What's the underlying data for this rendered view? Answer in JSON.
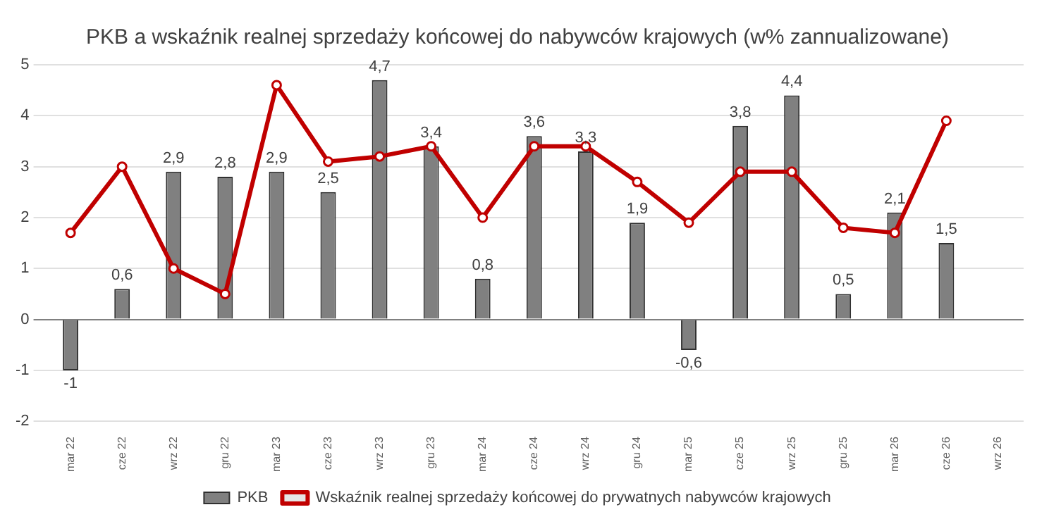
{
  "chart_data": {
    "type": "bar",
    "title": "PKB a wskaźnik realnej sprzedaży końcowej do nabywców krajowych (w% zannualizowane)",
    "categories": [
      "mar 22",
      "cze 22",
      "wrz 22",
      "gru 22",
      "mar 23",
      "cze 23",
      "wrz 23",
      "gru 23",
      "mar 24",
      "cze 24",
      "wrz 24",
      "gru 24",
      "mar 25",
      "cze 25",
      "wrz 25",
      "gru 25",
      "mar 26",
      "cze 26",
      "wrz 26"
    ],
    "series": [
      {
        "name": "PKB",
        "color": "#808080",
        "values": [
          -1,
          0.6,
          2.9,
          2.8,
          2.9,
          2.5,
          4.7,
          3.4,
          0.8,
          3.6,
          3.3,
          1.9,
          -0.6,
          3.8,
          4.4,
          0.5,
          2.1,
          1.5,
          null
        ],
        "value_labels": [
          "-1",
          "0,6",
          "2,9",
          "2,8",
          "2,9",
          "2,5",
          "4,7",
          "3,4",
          "0,8",
          "3,6",
          "3,3",
          "1,9",
          "-0,6",
          "3,8",
          "4,4",
          "0,5",
          "2,1",
          "1,5",
          null
        ]
      },
      {
        "name": "Wskaźnik realnej sprzedaży końcowej do prywatnych nabywców krajowych",
        "type": "line",
        "color": "#c00000",
        "marker": "circle",
        "line_style": "solid",
        "values": [
          1.7,
          3.0,
          1.0,
          0.5,
          4.6,
          3.1,
          3.2,
          3.4,
          2.0,
          3.4,
          3.4,
          2.7,
          1.9,
          2.9,
          2.9,
          1.8,
          1.7,
          3.9,
          null
        ]
      }
    ],
    "ylim": [
      -2,
      5
    ],
    "yticks": [
      -2,
      -1,
      0,
      1,
      2,
      3,
      4,
      5
    ],
    "grid": "y",
    "legend": "bottom"
  }
}
